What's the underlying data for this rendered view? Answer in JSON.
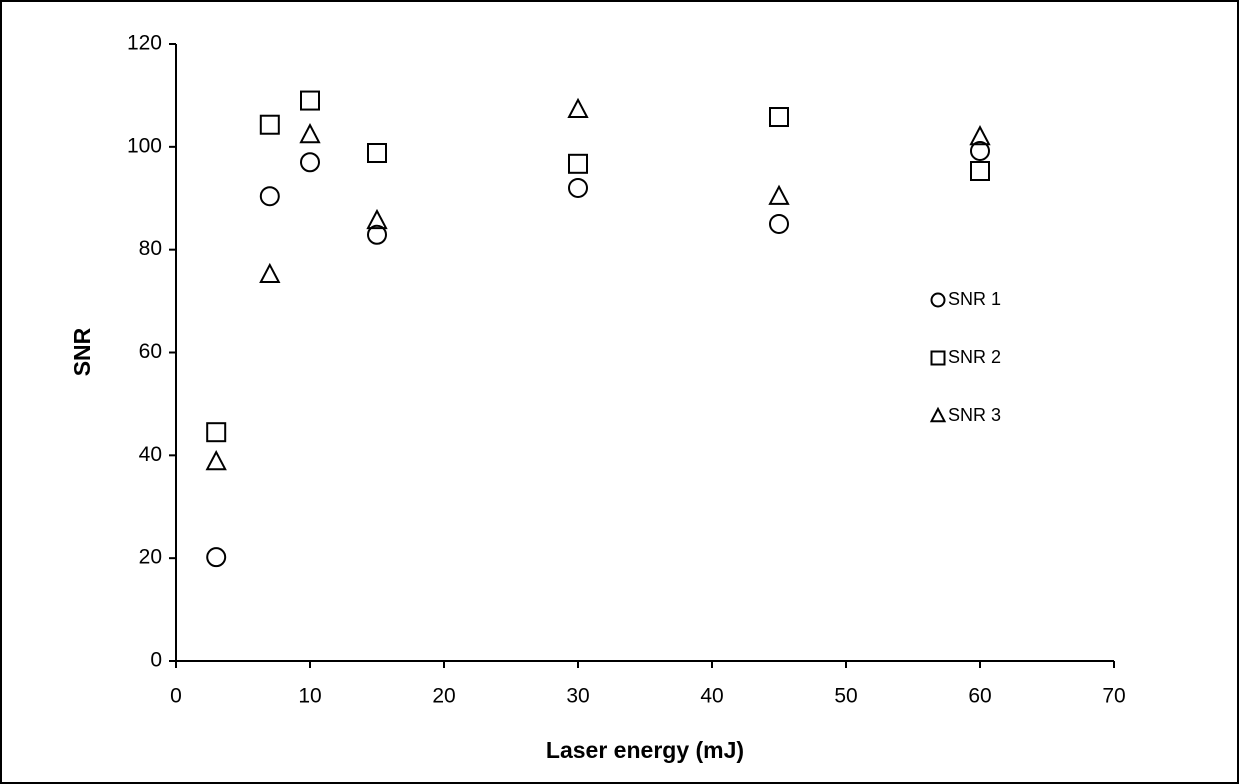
{
  "chart_data": {
    "type": "scatter",
    "x_label": "Laser energy  (mJ)",
    "y_label": "SNR",
    "xlim": [
      0,
      70
    ],
    "xticks": [
      0,
      10,
      20,
      30,
      40,
      50,
      60,
      70
    ],
    "ylim": [
      0,
      120
    ],
    "yticks": [
      0,
      20,
      40,
      60,
      80,
      100,
      120
    ],
    "grid": false,
    "legend_position": "right",
    "series": [
      {
        "name": "SNR 1",
        "marker": "circle",
        "color": "#000000",
        "x": [
          3,
          7,
          10,
          15,
          30,
          45,
          60
        ],
        "values": [
          20.2,
          90.4,
          97,
          82.9,
          92,
          85,
          99.2
        ]
      },
      {
        "name": "SNR 2",
        "marker": "square",
        "color": "#000000",
        "x": [
          3,
          7,
          10,
          15,
          30,
          45,
          60
        ],
        "values": [
          44.5,
          104.3,
          109,
          98.8,
          96.7,
          105.8,
          95.3
        ]
      },
      {
        "name": "SNR 3",
        "marker": "triangle",
        "color": "#000000",
        "x": [
          3,
          7,
          10,
          15,
          30,
          45,
          60
        ],
        "values": [
          38.7,
          75.1,
          102.3,
          85.6,
          107.2,
          90.3,
          101.9
        ]
      }
    ]
  }
}
